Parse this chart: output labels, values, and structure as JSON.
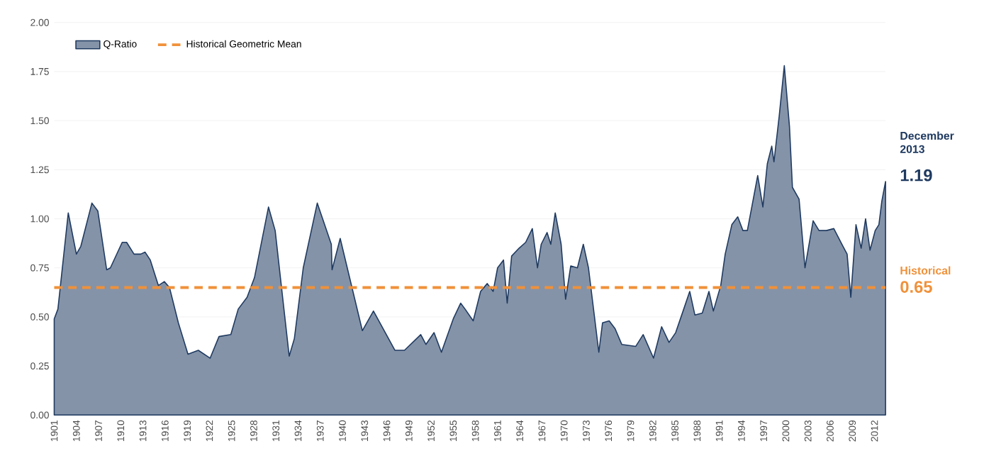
{
  "chart_data": {
    "type": "area",
    "legend": "top left",
    "grid": "y",
    "xlim": [
      1901,
      2013.5
    ],
    "ylim": [
      0,
      2
    ],
    "xticks": [
      1901,
      1904,
      1907,
      1910,
      1913,
      1916,
      1919,
      1922,
      1925,
      1928,
      1931,
      1934,
      1937,
      1940,
      1943,
      1946,
      1949,
      1952,
      1955,
      1958,
      1961,
      1964,
      1967,
      1970,
      1973,
      1976,
      1979,
      1982,
      1985,
      1988,
      1991,
      1994,
      1997,
      2000,
      2003,
      2006,
      2009,
      2012
    ],
    "yticks": [
      {
        "value": 0,
        "label": "0.00"
      },
      {
        "value": 0.25,
        "label": "0.25"
      },
      {
        "value": 0.5,
        "label": "0.50"
      },
      {
        "value": 0.75,
        "label": "0.75"
      },
      {
        "value": 1,
        "label": "1.00"
      },
      {
        "value": 1.25,
        "label": "1.25"
      },
      {
        "value": 1.5,
        "label": "1.50"
      },
      {
        "value": 1.75,
        "label": "1.75"
      },
      {
        "value": 2,
        "label": "2.00"
      }
    ],
    "series": [
      {
        "name": "Q-Ratio",
        "color": "#1f3a60",
        "x": [
          1901,
          1901.5,
          1902.9,
          1904.0,
          1904.6,
          1906.1,
          1906.9,
          1908.1,
          1908.6,
          1910.2,
          1910.8,
          1911.8,
          1912.7,
          1913.3,
          1914.0,
          1915.1,
          1915.9,
          1916.6,
          1917.8,
          1919.1,
          1920.5,
          1920.9,
          1922.1,
          1923.3,
          1924.9,
          1925.9,
          1927.1,
          1928.1,
          1930.0,
          1930.9,
          1932.8,
          1933.5,
          1934.7,
          1936.6,
          1938.5,
          1938.6,
          1939.7,
          1942.7,
          1944.2,
          1947.1,
          1948.4,
          1950.6,
          1951.3,
          1952.4,
          1953.4,
          1955.0,
          1956.0,
          1956.6,
          1957.7,
          1958.7,
          1959.6,
          1960.4,
          1961.0,
          1961.8,
          1962.3,
          1962.9,
          1963.9,
          1964.8,
          1965.7,
          1966.4,
          1966.9,
          1967.7,
          1968.2,
          1968.8,
          1969.6,
          1970.2,
          1970.9,
          1971.8,
          1972.6,
          1973.3,
          1974.7,
          1975.2,
          1976.1,
          1976.9,
          1977.8,
          1979.7,
          1980.7,
          1982.1,
          1983.2,
          1984.2,
          1985.1,
          1986.1,
          1987.0,
          1987.7,
          1988.7,
          1989.6,
          1990.2,
          1991.2,
          1991.8,
          1992.7,
          1993.5,
          1994.2,
          1994.8,
          1996.2,
          1996.9,
          1997.5,
          1998.1,
          1998.4,
          1999.1,
          1999.8,
          2000.5,
          2000.9,
          2001.8,
          2002.6,
          2003.7,
          2004.5,
          2005.5,
          2006.5,
          2007.6,
          2008.3,
          2008.8,
          2009.5,
          2010.2,
          2010.8,
          2011.4,
          2012.1,
          2012.6,
          2013.0,
          2013.5
        ],
        "values": [
          0.49,
          0.54,
          1.03,
          0.82,
          0.86,
          1.08,
          1.04,
          0.74,
          0.75,
          0.88,
          0.88,
          0.82,
          0.82,
          0.83,
          0.79,
          0.66,
          0.68,
          0.65,
          0.47,
          0.31,
          0.33,
          0.32,
          0.29,
          0.4,
          0.41,
          0.54,
          0.6,
          0.7,
          1.06,
          0.94,
          0.3,
          0.39,
          0.75,
          1.08,
          0.87,
          0.74,
          0.9,
          0.43,
          0.53,
          0.33,
          0.33,
          0.41,
          0.36,
          0.42,
          0.32,
          0.49,
          0.57,
          0.54,
          0.48,
          0.63,
          0.67,
          0.63,
          0.75,
          0.79,
          0.57,
          0.81,
          0.85,
          0.88,
          0.95,
          0.75,
          0.87,
          0.93,
          0.87,
          1.03,
          0.87,
          0.59,
          0.76,
          0.75,
          0.87,
          0.75,
          0.32,
          0.47,
          0.48,
          0.44,
          0.36,
          0.35,
          0.41,
          0.29,
          0.45,
          0.37,
          0.42,
          0.53,
          0.63,
          0.51,
          0.52,
          0.63,
          0.53,
          0.66,
          0.82,
          0.97,
          1.01,
          0.94,
          0.94,
          1.22,
          1.06,
          1.28,
          1.37,
          1.29,
          1.52,
          1.78,
          1.47,
          1.16,
          1.1,
          0.75,
          0.99,
          0.94,
          0.94,
          0.95,
          0.87,
          0.82,
          0.6,
          0.97,
          0.85,
          1.0,
          0.84,
          0.94,
          0.97,
          1.09,
          1.19
        ]
      }
    ],
    "ref_lines": [
      {
        "axis": "y",
        "value": 0.65,
        "label": "Historical Geometric Mean",
        "color": "#f0913a",
        "line_style": "dashed"
      }
    ],
    "annotations": [
      "December 2013",
      "1.19",
      "Historical",
      "0.65"
    ]
  }
}
